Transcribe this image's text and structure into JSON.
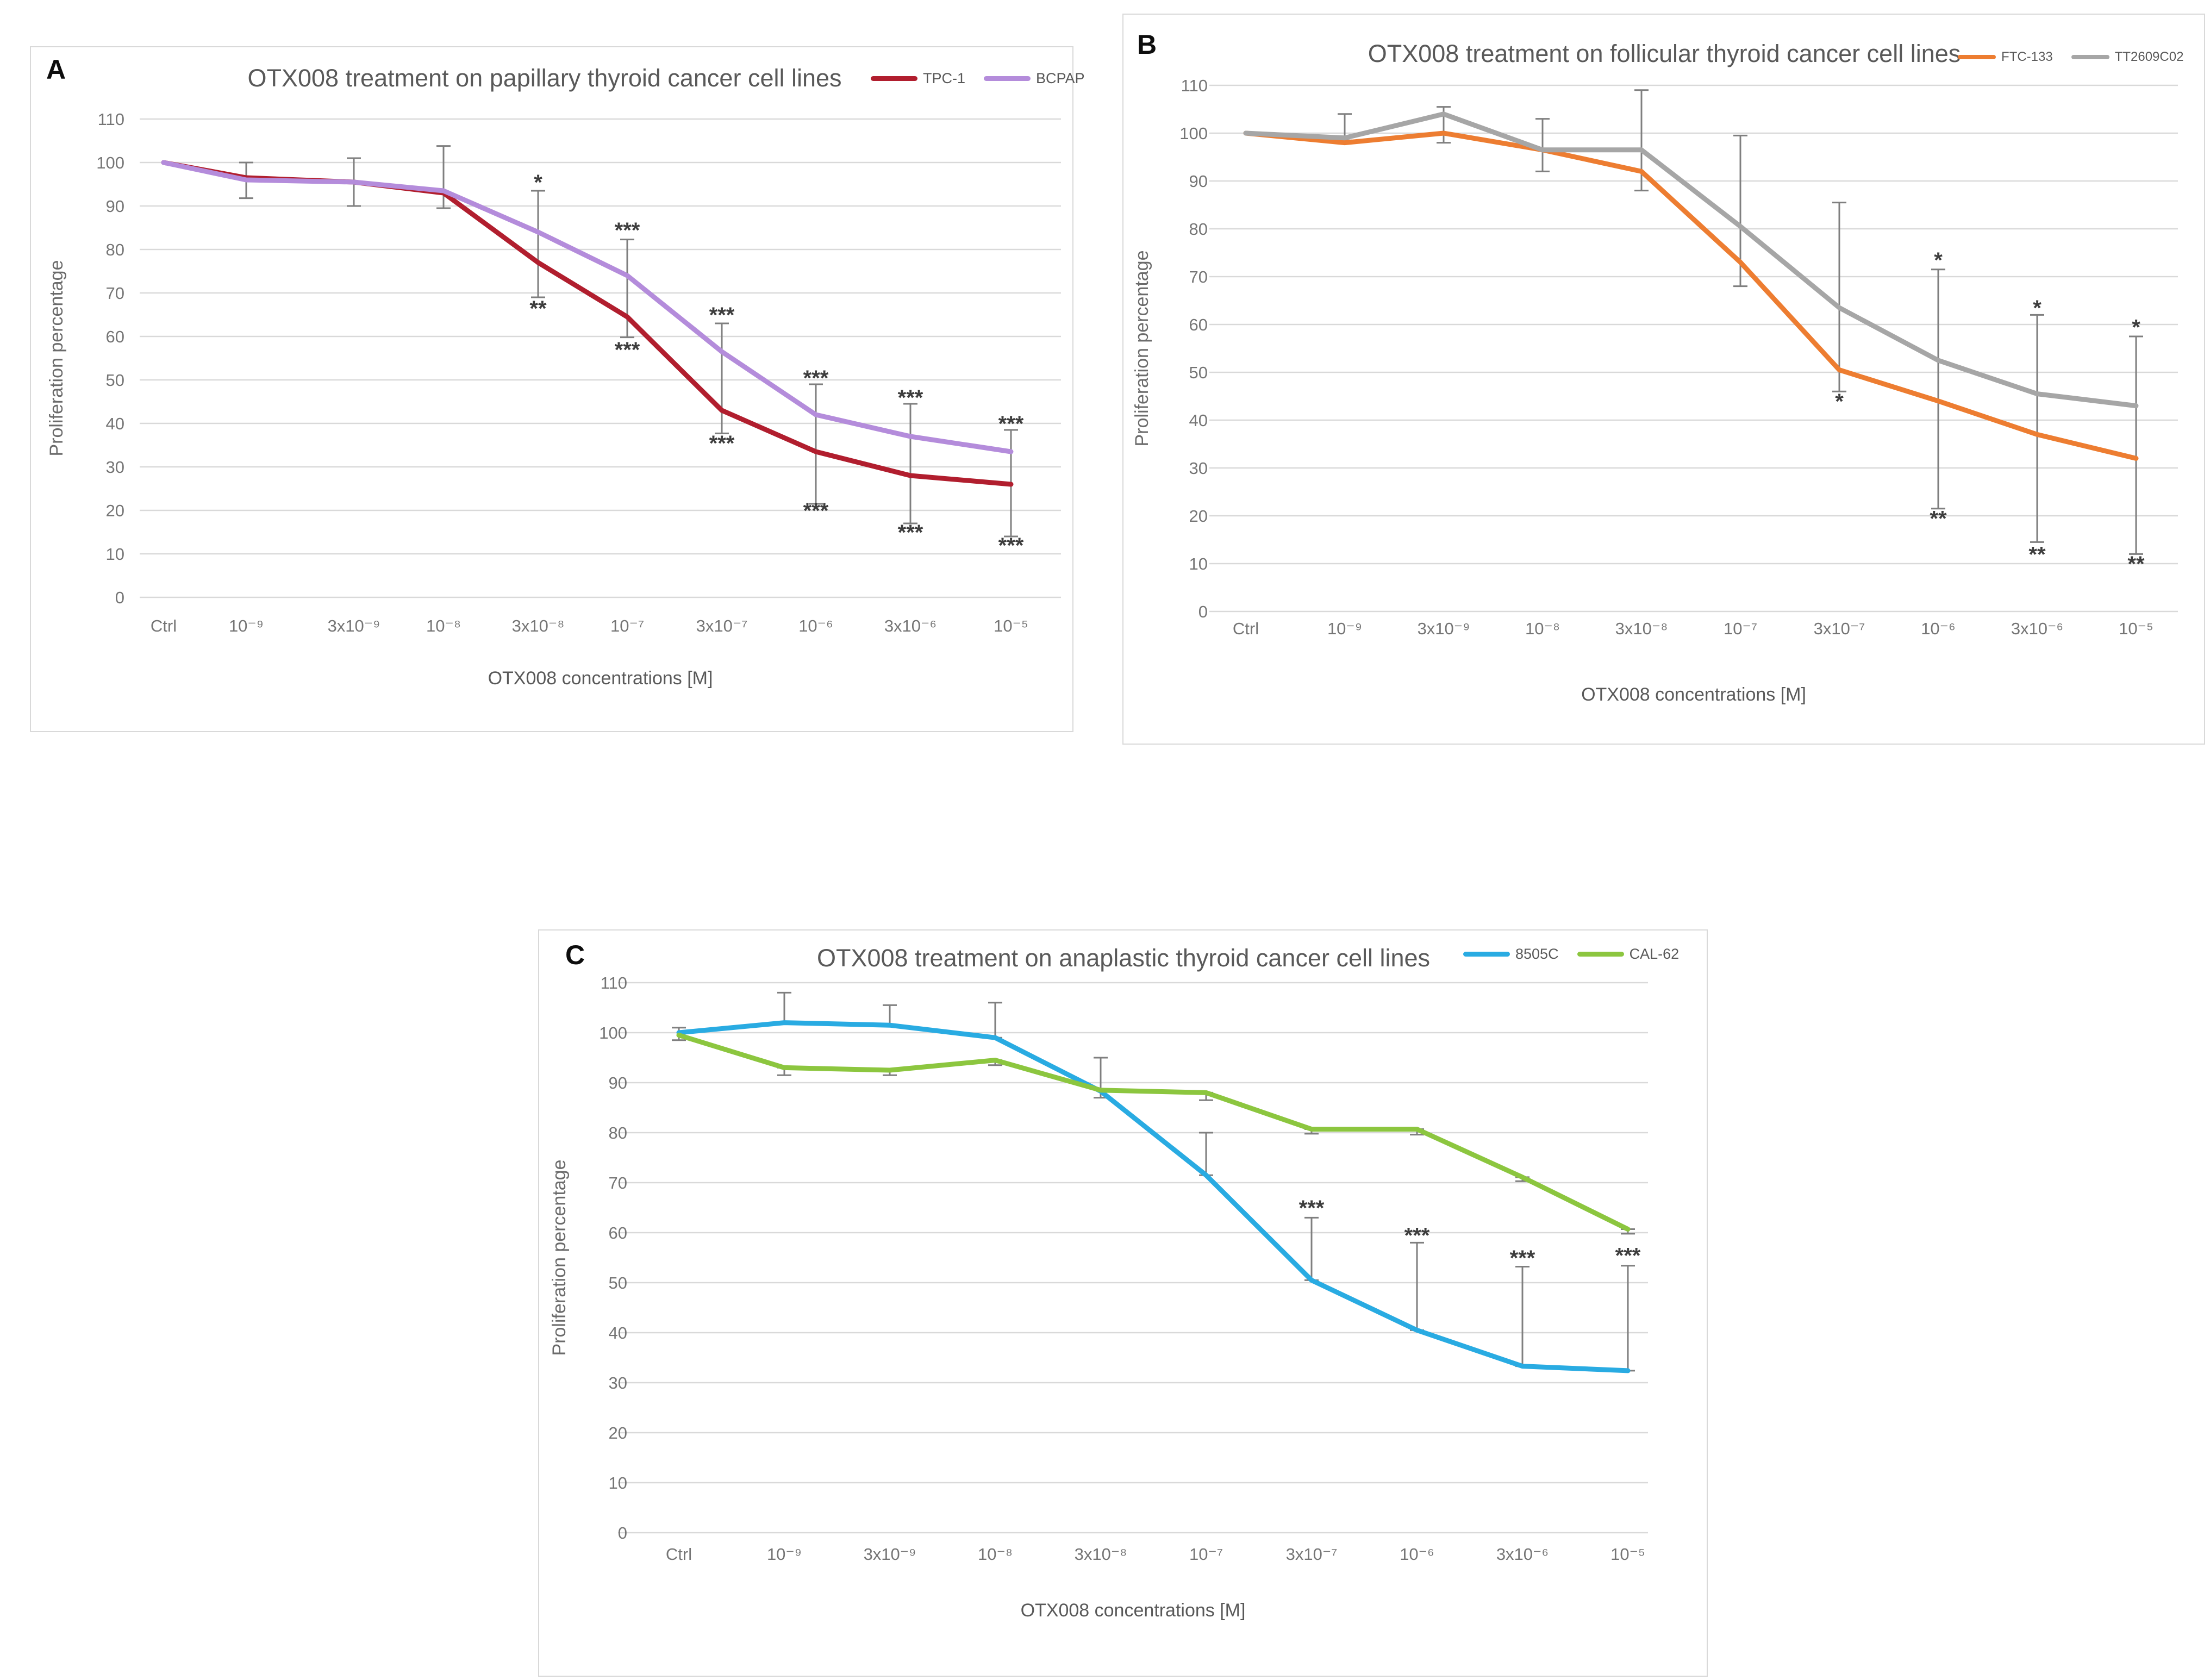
{
  "chart_data": [
    {
      "type": "line",
      "panel_label": "A",
      "title": "OTX008 treatment on papillary thyroid cancer cell lines",
      "x_axis_label": "OTX008 concentrations [M]",
      "y_axis_label": "Proliferation percentage",
      "categories": [
        "Ctrl",
        "10⁻⁹",
        "3x10⁻⁹",
        "10⁻⁸",
        "3x10⁻⁸",
        "10⁻⁷",
        "3x10⁻⁷",
        "10⁻⁶",
        "3x10⁻⁶",
        "10⁻⁵"
      ],
      "y_ticks": [
        0,
        10,
        20,
        30,
        40,
        50,
        60,
        70,
        80,
        90,
        100,
        110
      ],
      "ylim": [
        0,
        110
      ],
      "grid": true,
      "legend_position": "top-right",
      "series": [
        {
          "name": "TPC-1",
          "color": "#B11E2E",
          "values": [
            100,
            96.5,
            95.5,
            93,
            77,
            64.5,
            43,
            33.5,
            28,
            26
          ]
        },
        {
          "name": "BCPAP",
          "color": "#B48CDB",
          "values": [
            100,
            96,
            95.5,
            93.5,
            84,
            74,
            56.5,
            42,
            37,
            33.5
          ]
        }
      ],
      "error_bars": [
        [
          1,
          91.8,
          100
        ],
        [
          2,
          90,
          101
        ],
        [
          3,
          89.5,
          103.8
        ],
        [
          4,
          69,
          93.5
        ],
        [
          5,
          59.8,
          82.3
        ],
        [
          6,
          37.7,
          63
        ],
        [
          7,
          21.5,
          49
        ],
        [
          8,
          17,
          44.5
        ],
        [
          9,
          14,
          38.5
        ]
      ],
      "annotations": [
        {
          "x": 4,
          "y": 95.5,
          "text": "*"
        },
        {
          "x": 4,
          "y": 66.5,
          "text": "**"
        },
        {
          "x": 5,
          "y": 84.5,
          "text": "***"
        },
        {
          "x": 5,
          "y": 57,
          "text": "***"
        },
        {
          "x": 6,
          "y": 65,
          "text": "***"
        },
        {
          "x": 6,
          "y": 35.5,
          "text": "***"
        },
        {
          "x": 7,
          "y": 50.5,
          "text": "***"
        },
        {
          "x": 7,
          "y": 20,
          "text": "***"
        },
        {
          "x": 8,
          "y": 46,
          "text": "***"
        },
        {
          "x": 8,
          "y": 15,
          "text": "***"
        },
        {
          "x": 9,
          "y": 40,
          "text": "***"
        },
        {
          "x": 9,
          "y": 12,
          "text": "***"
        }
      ]
    },
    {
      "type": "line",
      "panel_label": "B",
      "title": "OTX008 treatment on follicular thyroid cancer cell lines",
      "x_axis_label": "OTX008 concentrations [M]",
      "y_axis_label": "Proliferation percentage",
      "categories": [
        "Ctrl",
        "10⁻⁹",
        "3x10⁻⁹",
        "10⁻⁸",
        "3x10⁻⁸",
        "10⁻⁷",
        "3x10⁻⁷",
        "10⁻⁶",
        "3x10⁻⁶",
        "10⁻⁵"
      ],
      "y_ticks": [
        0,
        10,
        20,
        30,
        40,
        50,
        60,
        70,
        80,
        90,
        100,
        110
      ],
      "ylim": [
        0,
        110
      ],
      "grid": true,
      "legend_position": "top-right",
      "series": [
        {
          "name": "FTC-133",
          "color": "#ED7D31",
          "values": [
            100,
            98,
            100,
            96.5,
            92,
            73,
            50.5,
            44,
            37,
            32
          ]
        },
        {
          "name": "TT2609C02",
          "color": "#A6A6A6",
          "values": [
            100,
            99,
            104,
            96.5,
            96.5,
            80.5,
            63.5,
            52.5,
            45.5,
            43
          ]
        }
      ],
      "error_bars": [
        [
          1,
          98.5,
          104
        ],
        [
          2,
          98,
          105.5
        ],
        [
          3,
          92,
          103
        ],
        [
          4,
          88,
          109
        ],
        [
          5,
          68,
          99.5
        ],
        [
          6,
          46,
          85.5
        ],
        [
          7,
          21.5,
          71.5
        ],
        [
          8,
          14.5,
          62
        ],
        [
          9,
          12,
          57.5
        ]
      ],
      "annotations": [
        {
          "x": 6,
          "y": 44,
          "text": "*"
        },
        {
          "x": 7,
          "y": 73.5,
          "text": "*"
        },
        {
          "x": 7,
          "y": 19.5,
          "text": "**"
        },
        {
          "x": 8,
          "y": 63.5,
          "text": "*"
        },
        {
          "x": 8,
          "y": 12,
          "text": "**"
        },
        {
          "x": 9,
          "y": 59.5,
          "text": "*"
        },
        {
          "x": 9,
          "y": 10,
          "text": "**"
        }
      ]
    },
    {
      "type": "line",
      "panel_label": "C",
      "title": "OTX008 treatment on anaplastic thyroid cancer cell lines",
      "x_axis_label": "OTX008 concentrations [M]",
      "y_axis_label": "Proliferation percentage",
      "categories": [
        "Ctrl",
        "10⁻⁹",
        "3x10⁻⁹",
        "10⁻⁸",
        "3x10⁻⁸",
        "10⁻⁷",
        "3x10⁻⁷",
        "10⁻⁶",
        "3x10⁻⁶",
        "10⁻⁵"
      ],
      "y_ticks": [
        0,
        10,
        20,
        30,
        40,
        50,
        60,
        70,
        80,
        90,
        100,
        110
      ],
      "ylim": [
        0,
        110
      ],
      "grid": true,
      "legend_position": "top-right",
      "series": [
        {
          "name": "8505C",
          "color": "#29ABE2",
          "values": [
            100,
            102,
            101.5,
            99,
            88.3,
            71.5,
            50.5,
            40.5,
            33.3,
            32.4
          ]
        },
        {
          "name": "CAL-62",
          "color": "#8CC63F",
          "values": [
            99.5,
            93,
            92.5,
            94.5,
            88.5,
            88,
            80.7,
            80.7,
            71.1,
            60.7
          ]
        }
      ],
      "error_bars": [
        [
          0,
          98.5,
          101
        ],
        [
          1,
          102,
          108
        ],
        [
          1,
          91.5,
          93
        ],
        [
          2,
          101.5,
          105.5
        ],
        [
          2,
          91.5,
          92.5
        ],
        [
          3,
          99,
          106
        ],
        [
          3,
          93.5,
          94.5
        ],
        [
          4,
          87,
          95
        ],
        [
          5,
          71.5,
          80
        ],
        [
          5,
          86.5,
          88
        ],
        [
          6,
          50.5,
          63
        ],
        [
          6,
          79.8,
          80.7
        ],
        [
          7,
          40.5,
          58
        ],
        [
          7,
          79.6,
          80.7
        ],
        [
          8,
          33.3,
          53.2
        ],
        [
          8,
          70.3,
          71.1
        ],
        [
          9,
          32.4,
          53.4
        ],
        [
          9,
          59.8,
          60.7
        ]
      ],
      "annotations": [
        {
          "x": 6,
          "y": 65,
          "text": "***"
        },
        {
          "x": 7,
          "y": 59.5,
          "text": "***"
        },
        {
          "x": 8,
          "y": 55,
          "text": "***"
        },
        {
          "x": 9,
          "y": 55.5,
          "text": "***"
        }
      ]
    }
  ]
}
